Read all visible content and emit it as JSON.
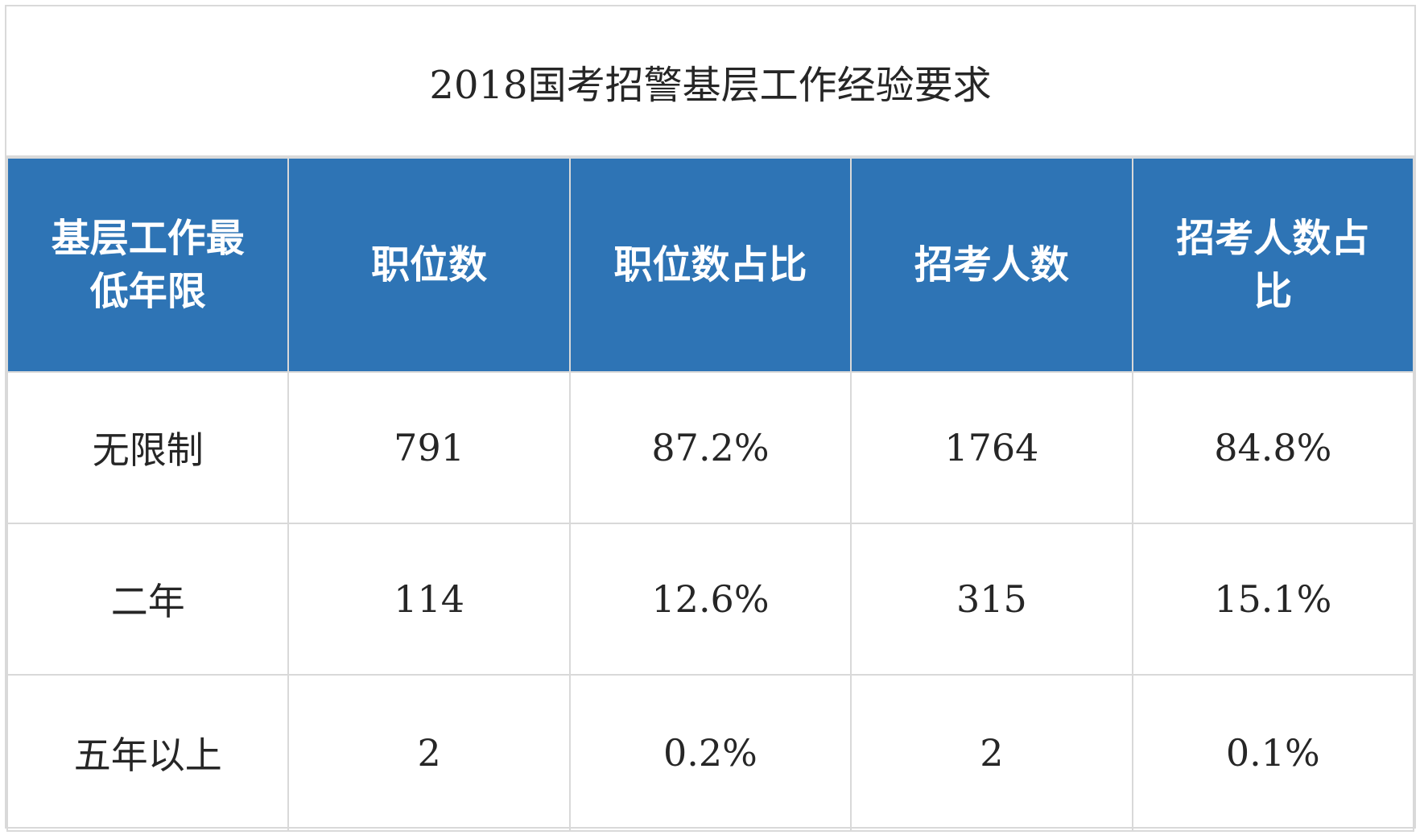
{
  "title": "2018国考招警基层工作经验要求",
  "colors": {
    "header_bg": "#2e74b5",
    "header_text": "#ffffff",
    "grid": "#d9d9d9",
    "body_text": "#262626"
  },
  "table": {
    "headers": [
      "基层工作最低年限",
      "职位数",
      "职位数占比",
      "招考人数",
      "招考人数占比"
    ],
    "rows": [
      [
        "无限制",
        "791",
        "87.2%",
        "1764",
        "84.8%"
      ],
      [
        "二年",
        "114",
        "12.6%",
        "315",
        "15.1%"
      ],
      [
        "五年以上",
        "2",
        "0.2%",
        "2",
        "0.1%"
      ]
    ]
  }
}
